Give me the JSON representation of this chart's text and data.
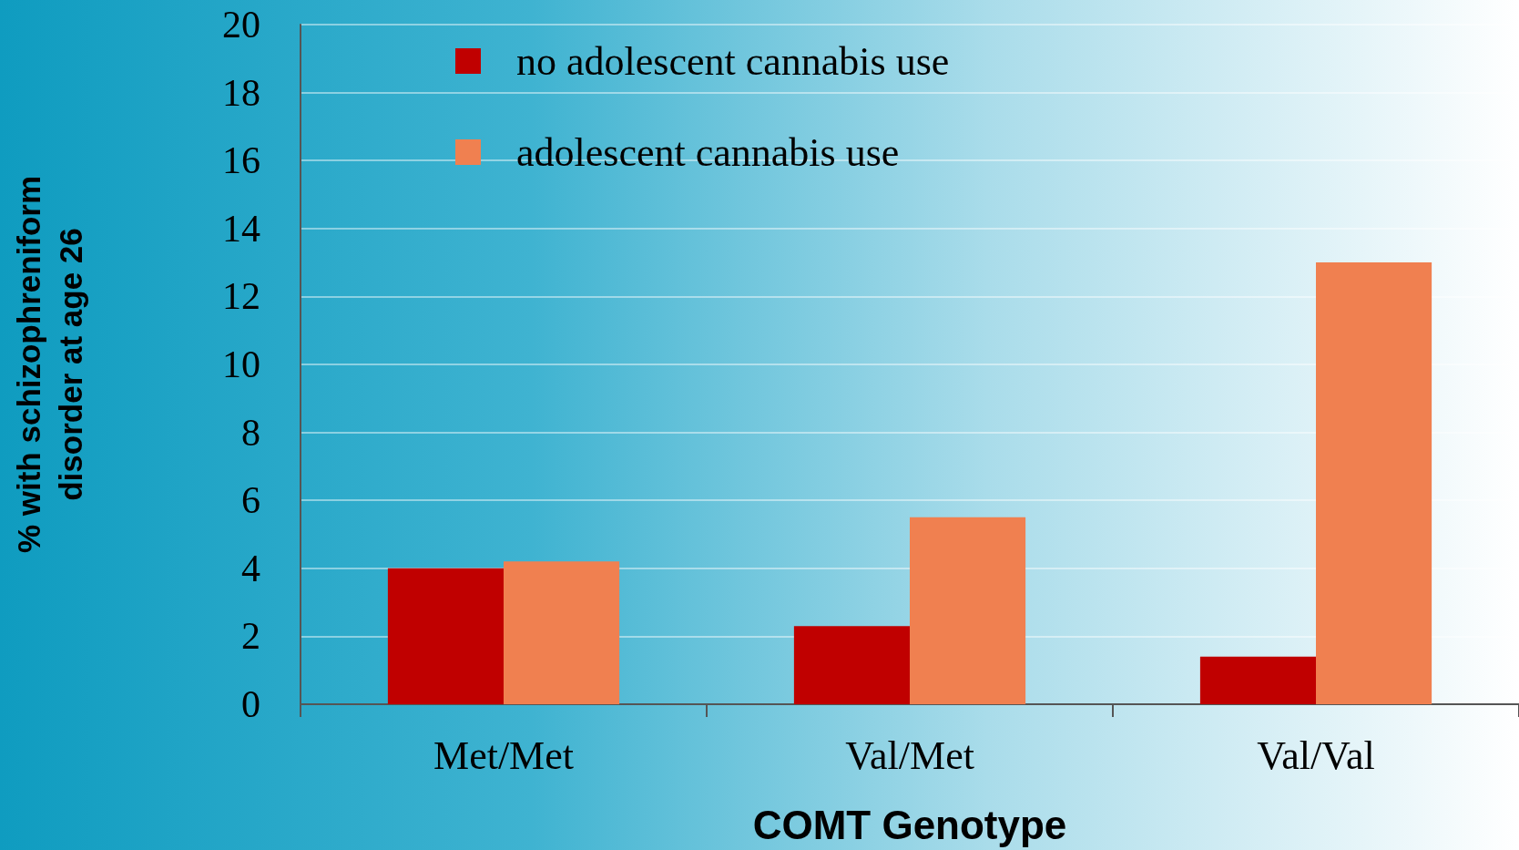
{
  "chart_data": {
    "type": "bar",
    "ylabel": "% with schizophreniform\ndisorder at age 26",
    "xlabel": "COMT Genotype",
    "categories": [
      "Met/Met",
      "Val/Met",
      "Val/Val"
    ],
    "series": [
      {
        "name": "no adolescent cannabis use",
        "color": "#c00000",
        "values": [
          4.0,
          2.3,
          1.4
        ]
      },
      {
        "name": "adolescent cannabis use",
        "color": "#f08050",
        "values": [
          4.2,
          5.5,
          13.0
        ]
      }
    ],
    "ylim": [
      0,
      20
    ],
    "yticks": [
      0,
      2,
      4,
      6,
      8,
      10,
      12,
      14,
      16,
      18,
      20
    ],
    "grid": "y",
    "legend": "top left"
  }
}
